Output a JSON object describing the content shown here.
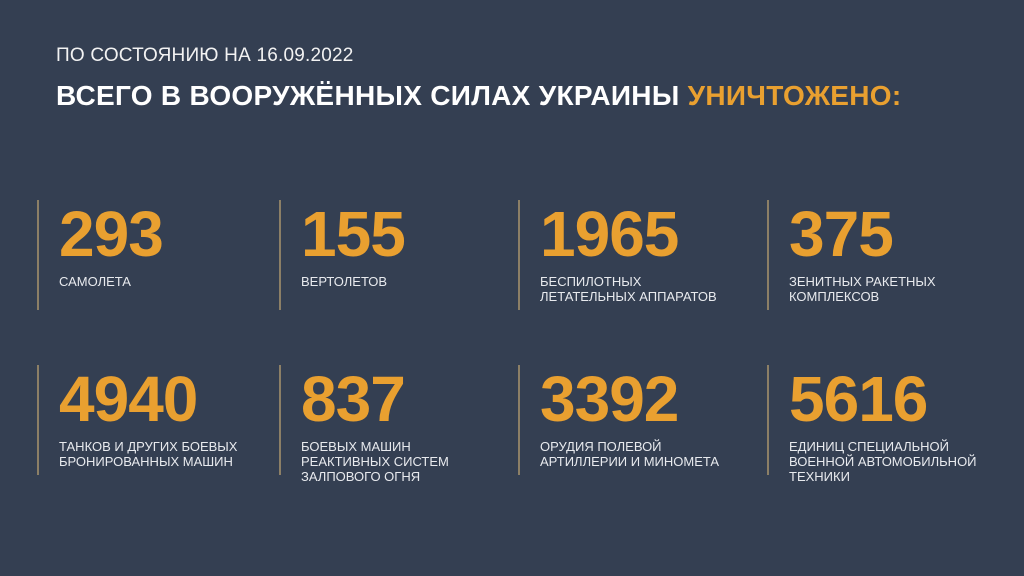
{
  "header": {
    "date_line": "ПО СОСТОЯНИЮ НА 16.09.2022",
    "title_main": "ВСЕГО В ВООРУЖЁННЫХ СИЛАХ УКРАИНЫ",
    "title_accent": "УНИЧТОЖЕНО:"
  },
  "colors": {
    "background": "#343f52",
    "accent": "#e9a030",
    "divider": "#8c7f66"
  },
  "stats": [
    {
      "value": "293",
      "label": "САМОЛЕТА"
    },
    {
      "value": "155",
      "label": "ВЕРТОЛЕТОВ"
    },
    {
      "value": "1965",
      "label": "БЕСПИЛОТНЫХ\nЛЕТАТЕЛЬНЫХ АППАРАТОВ"
    },
    {
      "value": "375",
      "label": "ЗЕНИТНЫХ РАКЕТНЫХ\nКОМПЛЕКСОВ"
    },
    {
      "value": "4940",
      "label": "ТАНКОВ И ДРУГИХ БОЕВЫХ\nБРОНИРОВАННЫХ МАШИН"
    },
    {
      "value": "837",
      "label": "БОЕВЫХ МАШИН\nРЕАКТИВНЫХ СИСТЕМ\nЗАЛПОВОГО ОГНЯ"
    },
    {
      "value": "3392",
      "label": "ОРУДИЯ ПОЛЕВОЙ\nАРТИЛЛЕРИИ И МИНОМЕТА"
    },
    {
      "value": "5616",
      "label": "ЕДИНИЦ СПЕЦИАЛЬНОЙ\nВОЕННОЙ АВТОМОБИЛЬНОЙ\nТЕХНИКИ"
    }
  ]
}
